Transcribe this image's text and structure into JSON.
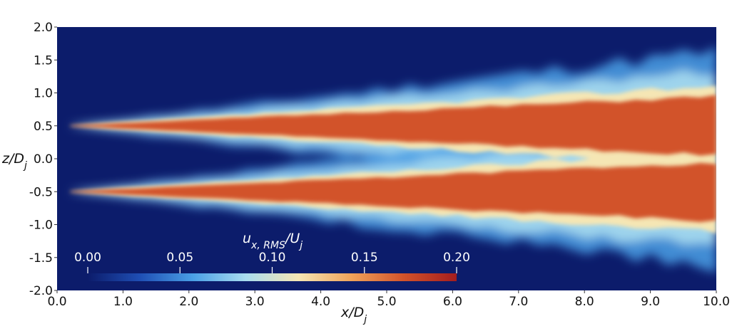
{
  "chart_data": {
    "type": "heatmap",
    "xlabel": "x/D_j",
    "ylabel": "z/D_j",
    "xlim": [
      0.0,
      10.0
    ],
    "ylim": [
      -2.0,
      2.0
    ],
    "x_ticks": [
      "0.0",
      "1.0",
      "2.0",
      "3.0",
      "4.0",
      "5.0",
      "6.0",
      "7.0",
      "8.0",
      "9.0",
      "10.0"
    ],
    "y_ticks": [
      "2.0",
      "1.5",
      "1.0",
      "0.5",
      "0.0",
      "-0.5",
      "-1.0",
      "-1.5",
      "-2.0"
    ],
    "colorbar": {
      "title": "u_{x, RMS}/U_j",
      "range": [
        0.0,
        0.2
      ],
      "ticks": [
        "0.00",
        "0.05",
        "0.10",
        "0.15",
        "0.20"
      ],
      "colormap": [
        "#0c1c6b",
        "#1f4fb5",
        "#4aa0e6",
        "#a9dcef",
        "#f5e6b4",
        "#f0a35a",
        "#d2522a",
        "#a31d1e"
      ]
    },
    "shear_layers": [
      {
        "name": "upper",
        "origin_x": 0.2,
        "center_z": 0.5,
        "peak_value": 0.19
      },
      {
        "name": "lower",
        "origin_x": 0.2,
        "center_z": -0.5,
        "peak_value": 0.19
      }
    ],
    "background_value": 0.0
  }
}
